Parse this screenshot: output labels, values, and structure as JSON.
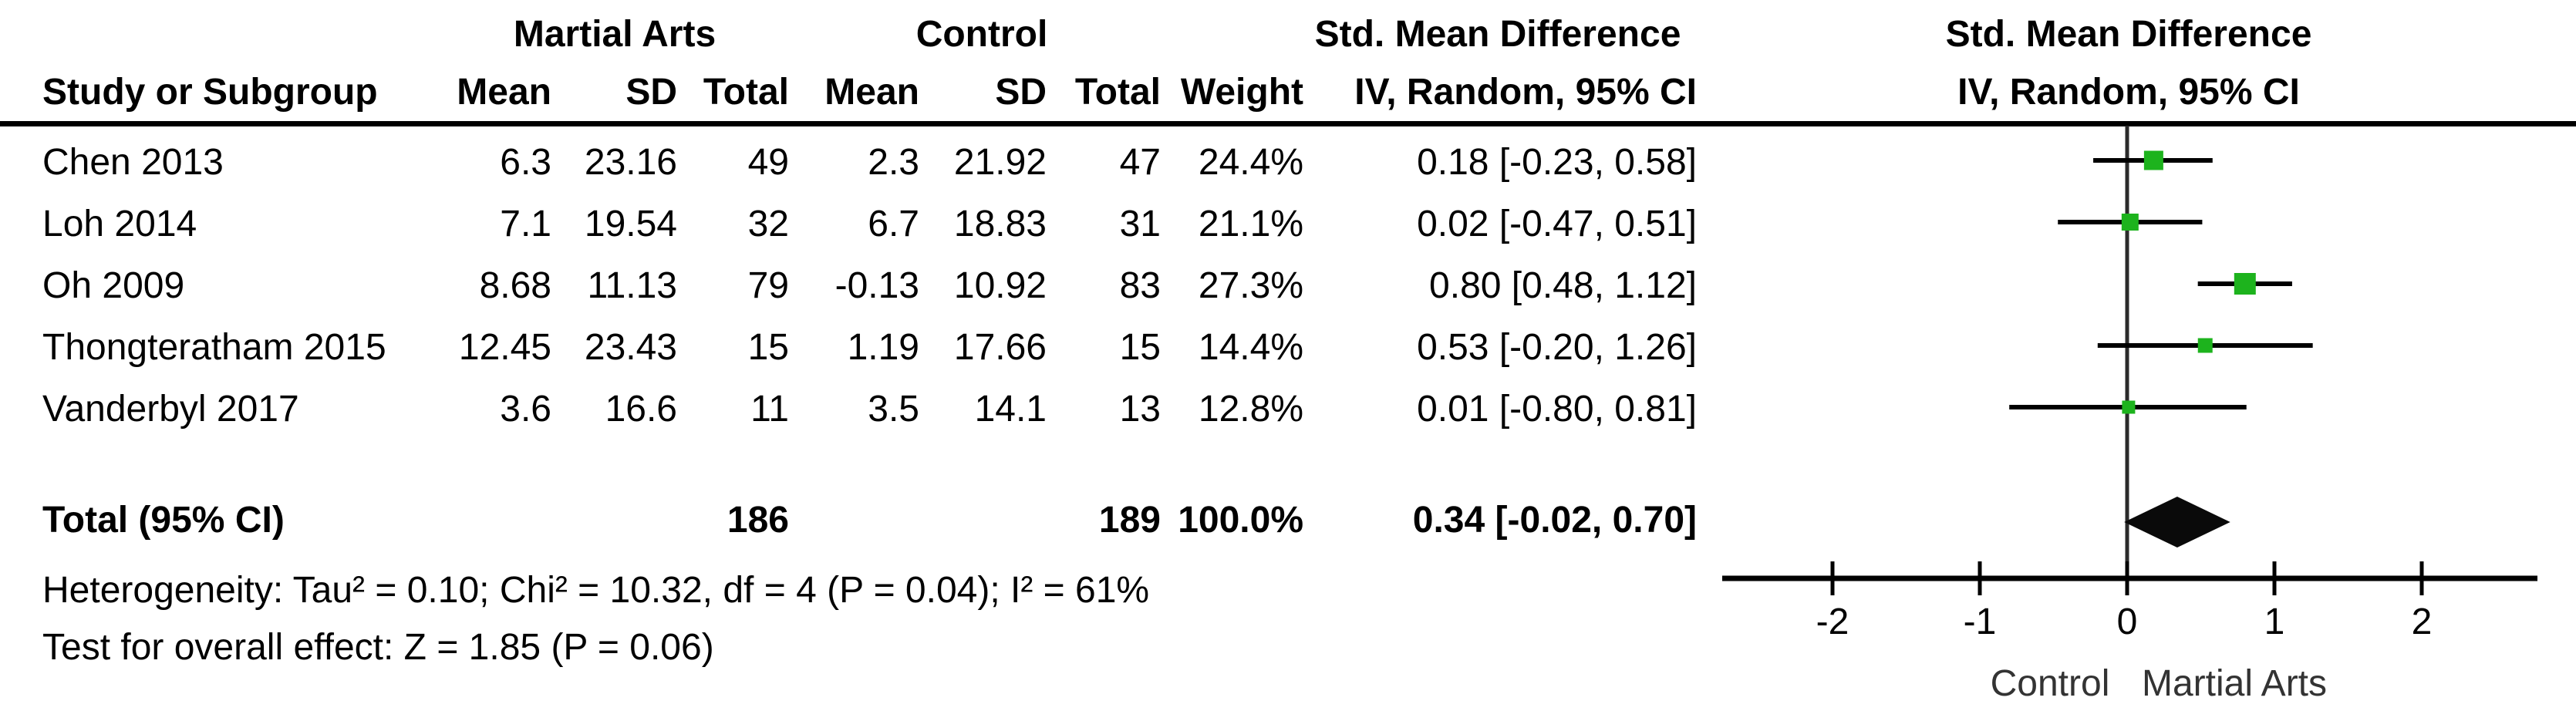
{
  "headers": {
    "group1": "Martial Arts",
    "group2": "Control",
    "effect_col": "Std. Mean Difference",
    "effect_plot": "Std. Mean Difference",
    "method_plot": "IV, Random, 95% CI"
  },
  "table": {
    "header": {
      "study": "Study or Subgroup",
      "mean1": "Mean",
      "sd1": "SD",
      "total1": "Total",
      "mean2": "Mean",
      "sd2": "SD",
      "total2": "Total",
      "weight": "Weight",
      "ci": "IV, Random, 95% CI"
    },
    "rows": [
      {
        "study": "Chen 2013",
        "mean1": "6.3",
        "sd1": "23.16",
        "total1": "49",
        "mean2": "2.3",
        "sd2": "21.92",
        "total2": "47",
        "weight": "24.4%",
        "ci": "0.18 [-0.23, 0.58]"
      },
      {
        "study": "Loh 2014",
        "mean1": "7.1",
        "sd1": "19.54",
        "total1": "32",
        "mean2": "6.7",
        "sd2": "18.83",
        "total2": "31",
        "weight": "21.1%",
        "ci": "0.02 [-0.47, 0.51]"
      },
      {
        "study": "Oh 2009",
        "mean1": "8.68",
        "sd1": "11.13",
        "total1": "79",
        "mean2": "-0.13",
        "sd2": "10.92",
        "total2": "83",
        "weight": "27.3%",
        "ci": "0.80 [0.48, 1.12]"
      },
      {
        "study": "Thongteratham 2015",
        "mean1": "12.45",
        "sd1": "23.43",
        "total1": "15",
        "mean2": "1.19",
        "sd2": "17.66",
        "total2": "15",
        "weight": "14.4%",
        "ci": "0.53 [-0.20, 1.26]"
      },
      {
        "study": "Vanderbyl 2017",
        "mean1": "3.6",
        "sd1": "16.6",
        "total1": "11",
        "mean2": "3.5",
        "sd2": "14.1",
        "total2": "13",
        "weight": "12.8%",
        "ci": "0.01 [-0.80, 0.81]"
      }
    ],
    "total": {
      "study": "Total (95% CI)",
      "total1": "186",
      "total2": "189",
      "weight": "100.0%",
      "ci": "0.34 [-0.02, 0.70]"
    }
  },
  "footnotes": {
    "heterogeneity": "Heterogeneity: Tau² = 0.10; Chi² = 10.32, df = 4 (P = 0.04); I² = 61%",
    "overall_effect": "Test for overall effect: Z = 1.85 (P = 0.06)"
  },
  "chart_data": {
    "type": "scatter",
    "subtype": "forest-plot",
    "title": "Std. Mean Difference",
    "method_label": "IV, Random, 95% CI",
    "x_ticks": [
      -2,
      -1,
      0,
      1,
      2
    ],
    "xlim": [
      -2.75,
      2.77
    ],
    "x_axis_left_label": "Control",
    "x_axis_right_label": "Martial Arts",
    "studies": [
      {
        "name": "Chen 2013",
        "estimate": 0.18,
        "ci_low": -0.23,
        "ci_high": 0.58,
        "weight_pct": 24.4,
        "marker_px": 25
      },
      {
        "name": "Loh 2014",
        "estimate": 0.02,
        "ci_low": -0.47,
        "ci_high": 0.51,
        "weight_pct": 21.1,
        "marker_px": 22
      },
      {
        "name": "Oh 2009",
        "estimate": 0.8,
        "ci_low": 0.48,
        "ci_high": 1.12,
        "weight_pct": 27.3,
        "marker_px": 28
      },
      {
        "name": "Thongteratham 2015",
        "estimate": 0.53,
        "ci_low": -0.2,
        "ci_high": 1.26,
        "weight_pct": 14.4,
        "marker_px": 19
      },
      {
        "name": "Vanderbyl 2017",
        "estimate": 0.01,
        "ci_low": -0.8,
        "ci_high": 0.81,
        "weight_pct": 12.8,
        "marker_px": 17
      }
    ],
    "total": {
      "label": "Total (95% CI)",
      "estimate": 0.34,
      "ci_low": -0.02,
      "ci_high": 0.7,
      "weight_pct": 100.0
    },
    "colors": {
      "marker": "#1db31d",
      "ci_line": "#000000",
      "diamond": "#0a0a0a",
      "zero_line": "#2b2b2b",
      "axis": "#000000"
    }
  }
}
